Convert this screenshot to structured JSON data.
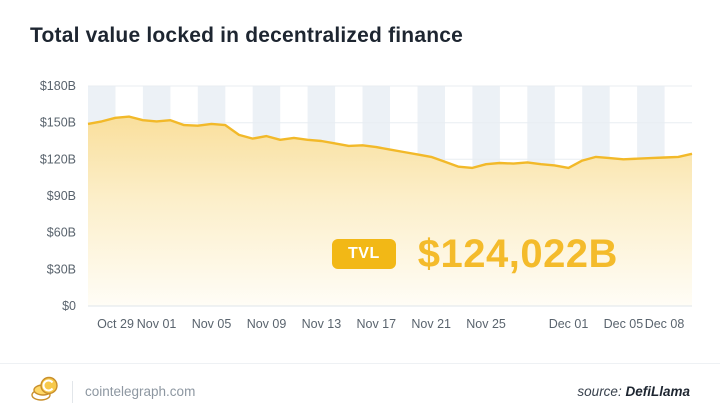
{
  "title": "Total value locked in decentralized finance",
  "callout": {
    "badge": "TVL",
    "value": "$124,022B"
  },
  "footer": {
    "site": "cointelegraph.com",
    "source_label": "source:",
    "source_name": "DefiLlama"
  },
  "icons": {
    "logo": "coin-stack-icon"
  },
  "chart_data": {
    "type": "area",
    "title": "Total value locked in decentralized finance",
    "unit": "$B",
    "xlabel": "",
    "ylabel": "",
    "ylim": [
      0,
      180
    ],
    "grid": "faint-horizontal, striped vertical bands",
    "legend": "none",
    "colors": {
      "line": "#F2B929",
      "stripe": "#ECF1F6",
      "accent": "#F2B816"
    },
    "x": [
      "Oct 27",
      "Oct 28",
      "Oct 29",
      "Oct 30",
      "Oct 31",
      "Nov 01",
      "Nov 02",
      "Nov 03",
      "Nov 04",
      "Nov 05",
      "Nov 06",
      "Nov 07",
      "Nov 08",
      "Nov 09",
      "Nov 10",
      "Nov 11",
      "Nov 12",
      "Nov 13",
      "Nov 14",
      "Nov 15",
      "Nov 16",
      "Nov 17",
      "Nov 18",
      "Nov 19",
      "Nov 20",
      "Nov 21",
      "Nov 22",
      "Nov 23",
      "Nov 24",
      "Nov 25",
      "Nov 26",
      "Nov 27",
      "Nov 28",
      "Nov 29",
      "Nov 30",
      "Dec 01",
      "Dec 02",
      "Dec 03",
      "Dec 04",
      "Dec 05",
      "Dec 06",
      "Dec 07",
      "Dec 08",
      "Dec 09",
      "Dec 10"
    ],
    "values": [
      149,
      151,
      154,
      155,
      152,
      151,
      152,
      148,
      147.5,
      149,
      148,
      140,
      137,
      139,
      136,
      137.5,
      136,
      135,
      133,
      131,
      131.5,
      130,
      128,
      126,
      124,
      122,
      118,
      114,
      113,
      116,
      117,
      116.5,
      117.5,
      116,
      115,
      113,
      119,
      122,
      121,
      120,
      120.5,
      121,
      121.5,
      122,
      124.5
    ],
    "x_ticks": [
      {
        "label": "Oct 29",
        "index": 2
      },
      {
        "label": "Nov 01",
        "index": 5
      },
      {
        "label": "Nov 05",
        "index": 9
      },
      {
        "label": "Nov 09",
        "index": 13
      },
      {
        "label": "Nov 13",
        "index": 17
      },
      {
        "label": "Nov 17",
        "index": 21
      },
      {
        "label": "Nov 21",
        "index": 25
      },
      {
        "label": "Nov 25",
        "index": 29
      },
      {
        "label": "Dec 01",
        "index": 35
      },
      {
        "label": "Dec 05",
        "index": 39
      },
      {
        "label": "Dec 08",
        "index": 42
      }
    ],
    "y_ticks": [
      {
        "label": "$180B",
        "value": 180
      },
      {
        "label": "$150B",
        "value": 150
      },
      {
        "label": "$120B",
        "value": 120
      },
      {
        "label": "$90B",
        "value": 90
      },
      {
        "label": "$60B",
        "value": 60
      },
      {
        "label": "$30B",
        "value": 30
      },
      {
        "label": "$0",
        "value": 0
      }
    ]
  }
}
